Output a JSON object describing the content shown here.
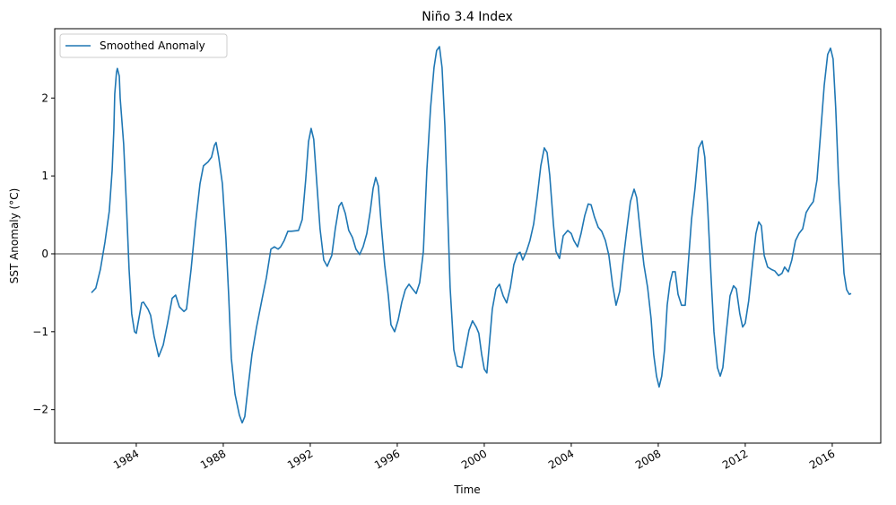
{
  "chart_data": {
    "type": "line",
    "title": "Niño 3.4 Index",
    "xlabel": "Time",
    "ylabel": "SST Anomaly (°C)",
    "x": [
      1981.94,
      1982.14,
      1982.35,
      1982.56,
      1982.76,
      1982.89,
      1982.97,
      1983.01,
      1983.09,
      1983.13,
      1983.22,
      1983.26,
      1983.42,
      1983.55,
      1983.67,
      1983.79,
      1983.92,
      1984.0,
      1984.12,
      1984.25,
      1984.33,
      1984.54,
      1984.66,
      1984.82,
      1985.03,
      1985.24,
      1985.44,
      1985.65,
      1985.81,
      1985.98,
      1986.19,
      1986.31,
      1986.52,
      1986.72,
      1986.93,
      1987.09,
      1987.3,
      1987.46,
      1987.59,
      1987.67,
      1987.79,
      1987.96,
      1988.12,
      1988.25,
      1988.37,
      1988.54,
      1988.74,
      1988.87,
      1988.99,
      1989.15,
      1989.32,
      1989.53,
      1989.77,
      1989.98,
      1990.19,
      1990.35,
      1990.52,
      1990.64,
      1990.8,
      1990.97,
      1991.13,
      1991.46,
      1991.63,
      1991.79,
      1991.92,
      1992.04,
      1992.16,
      1992.29,
      1992.45,
      1992.62,
      1992.78,
      1992.99,
      1993.15,
      1993.32,
      1993.44,
      1993.61,
      1993.77,
      1993.94,
      1994.1,
      1994.27,
      1994.43,
      1994.6,
      1994.76,
      1994.89,
      1995.01,
      1995.13,
      1995.26,
      1995.42,
      1995.59,
      1995.71,
      1995.88,
      1996.04,
      1996.21,
      1996.37,
      1996.54,
      1996.7,
      1996.87,
      1997.03,
      1997.2,
      1997.36,
      1997.53,
      1997.69,
      1997.81,
      1997.94,
      1998.06,
      1998.19,
      1998.31,
      1998.43,
      1998.6,
      1998.76,
      1998.97,
      1999.13,
      1999.3,
      1999.46,
      1999.63,
      1999.75,
      1999.88,
      2000.0,
      2000.12,
      2000.25,
      2000.37,
      2000.54,
      2000.7,
      2000.87,
      2001.03,
      2001.2,
      2001.36,
      2001.53,
      2001.65,
      2001.77,
      2001.94,
      2002.1,
      2002.27,
      2002.43,
      2002.6,
      2002.76,
      2002.89,
      2003.01,
      2003.18,
      2003.3,
      2003.46,
      2003.63,
      2003.84,
      2004.0,
      2004.12,
      2004.29,
      2004.45,
      2004.62,
      2004.78,
      2004.91,
      2005.07,
      2005.24,
      2005.4,
      2005.57,
      2005.73,
      2005.9,
      2006.06,
      2006.23,
      2006.39,
      2006.56,
      2006.72,
      2006.89,
      2007.01,
      2007.18,
      2007.34,
      2007.51,
      2007.67,
      2007.79,
      2007.92,
      2008.04,
      2008.16,
      2008.29,
      2008.41,
      2008.54,
      2008.66,
      2008.78,
      2008.91,
      2009.07,
      2009.24,
      2009.36,
      2009.53,
      2009.69,
      2009.86,
      2010.02,
      2010.14,
      2010.27,
      2010.43,
      2010.56,
      2010.72,
      2010.85,
      2010.97,
      2011.13,
      2011.3,
      2011.46,
      2011.59,
      2011.75,
      2011.88,
      2012.0,
      2012.16,
      2012.33,
      2012.49,
      2012.62,
      2012.74,
      2012.87,
      2013.03,
      2013.2,
      2013.36,
      2013.53,
      2013.69,
      2013.81,
      2013.98,
      2014.14,
      2014.31,
      2014.47,
      2014.64,
      2014.8,
      2014.97,
      2015.13,
      2015.3,
      2015.46,
      2015.63,
      2015.79,
      2015.92,
      2016.04,
      2016.16,
      2016.29,
      2016.41,
      2016.54,
      2016.66,
      2016.78,
      2016.87
    ],
    "series": [
      {
        "name": "Smoothed Anomaly",
        "color": "#1f77b4",
        "values": [
          -0.5,
          -0.44,
          -0.2,
          0.15,
          0.55,
          1.07,
          1.6,
          2.05,
          2.33,
          2.38,
          2.28,
          2.0,
          1.41,
          0.61,
          -0.2,
          -0.77,
          -1.0,
          -1.02,
          -0.83,
          -0.63,
          -0.62,
          -0.71,
          -0.79,
          -1.06,
          -1.32,
          -1.17,
          -0.89,
          -0.57,
          -0.53,
          -0.68,
          -0.74,
          -0.71,
          -0.2,
          0.38,
          0.9,
          1.13,
          1.18,
          1.24,
          1.39,
          1.43,
          1.24,
          0.9,
          0.21,
          -0.54,
          -1.34,
          -1.8,
          -2.07,
          -2.17,
          -2.09,
          -1.69,
          -1.29,
          -0.94,
          -0.6,
          -0.31,
          0.06,
          0.09,
          0.06,
          0.09,
          0.17,
          0.29,
          0.29,
          0.3,
          0.44,
          0.95,
          1.44,
          1.61,
          1.47,
          0.95,
          0.32,
          -0.08,
          -0.16,
          -0.02,
          0.32,
          0.61,
          0.66,
          0.52,
          0.3,
          0.21,
          0.06,
          -0.01,
          0.09,
          0.26,
          0.55,
          0.84,
          0.98,
          0.87,
          0.38,
          -0.14,
          -0.54,
          -0.91,
          -1.0,
          -0.85,
          -0.62,
          -0.46,
          -0.39,
          -0.45,
          -0.51,
          -0.37,
          0.03,
          1.07,
          1.87,
          2.39,
          2.61,
          2.66,
          2.39,
          1.64,
          0.61,
          -0.43,
          -1.23,
          -1.44,
          -1.46,
          -1.23,
          -0.98,
          -0.86,
          -0.94,
          -1.02,
          -1.29,
          -1.48,
          -1.53,
          -1.11,
          -0.71,
          -0.45,
          -0.39,
          -0.54,
          -0.63,
          -0.43,
          -0.14,
          0.0,
          0.02,
          -0.08,
          0.03,
          0.17,
          0.38,
          0.72,
          1.13,
          1.36,
          1.3,
          1.01,
          0.38,
          0.03,
          -0.06,
          0.23,
          0.3,
          0.26,
          0.17,
          0.09,
          0.26,
          0.49,
          0.64,
          0.63,
          0.47,
          0.34,
          0.29,
          0.17,
          -0.02,
          -0.4,
          -0.66,
          -0.48,
          -0.08,
          0.32,
          0.67,
          0.83,
          0.72,
          0.26,
          -0.14,
          -0.43,
          -0.83,
          -1.29,
          -1.57,
          -1.71,
          -1.57,
          -1.23,
          -0.66,
          -0.37,
          -0.23,
          -0.23,
          -0.52,
          -0.66,
          -0.66,
          -0.2,
          0.44,
          0.84,
          1.36,
          1.45,
          1.24,
          0.61,
          -0.31,
          -1.0,
          -1.46,
          -1.57,
          -1.46,
          -1.0,
          -0.54,
          -0.41,
          -0.45,
          -0.77,
          -0.94,
          -0.89,
          -0.6,
          -0.14,
          0.26,
          0.41,
          0.36,
          -0.02,
          -0.17,
          -0.2,
          -0.22,
          -0.28,
          -0.25,
          -0.17,
          -0.23,
          -0.08,
          0.17,
          0.26,
          0.32,
          0.53,
          0.61,
          0.67,
          0.95,
          1.53,
          2.16,
          2.56,
          2.64,
          2.5,
          1.87,
          0.95,
          0.38,
          -0.25,
          -0.46,
          -0.52,
          -0.51
        ]
      }
    ],
    "xlim": [
      1980.25,
      2018.23
    ],
    "xticks": [
      1984,
      1988,
      1992,
      1996,
      2000,
      2004,
      2008,
      2012,
      2016
    ],
    "ylim": [
      -2.43,
      2.89
    ],
    "yticks": [
      {
        "value": -2,
        "label": "−2"
      },
      {
        "value": -1,
        "label": "−1"
      },
      0,
      1,
      2
    ],
    "hline": 0,
    "legend_loc": "upper left"
  }
}
